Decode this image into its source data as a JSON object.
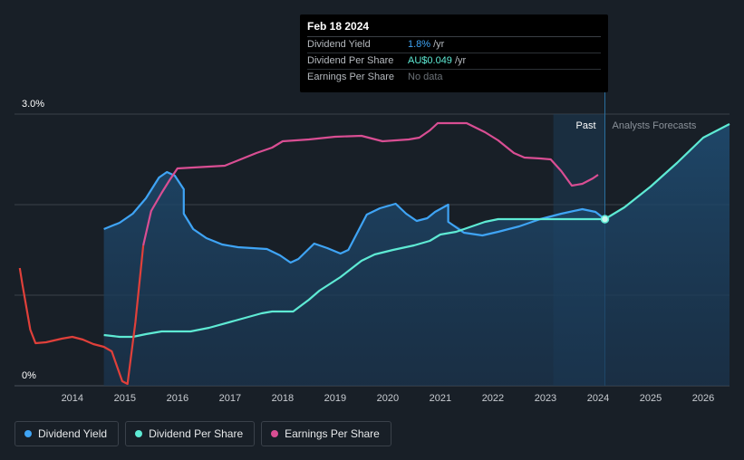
{
  "tooltip": {
    "date": "Feb 18 2024",
    "rows": [
      {
        "label": "Dividend Yield",
        "value": "1.8%",
        "unit": "/yr",
        "color": "#3fa4f5"
      },
      {
        "label": "Dividend Per Share",
        "value": "AU$0.049",
        "unit": "/yr",
        "color": "#5eead4"
      },
      {
        "label": "Earnings Per Share",
        "value": "No data",
        "unit": "",
        "color": "#6b7177"
      }
    ]
  },
  "legend": [
    {
      "label": "Dividend Yield",
      "color": "#3fa4f5"
    },
    {
      "label": "Dividend Per Share",
      "color": "#5eead4"
    },
    {
      "label": "Earnings Per Share",
      "color": "#d94e93"
    }
  ],
  "chart_data": {
    "type": "line",
    "title": "",
    "xlabel": "",
    "ylabel": "",
    "xlim": [
      2012.9,
      2026.5
    ],
    "ylim": [
      0,
      3.0
    ],
    "y_tick_labels": [
      {
        "value": 3.0,
        "label": "3.0%"
      },
      {
        "value": 0,
        "label": "0%"
      }
    ],
    "x_ticks": [
      2014,
      2015,
      2016,
      2017,
      2018,
      2019,
      2020,
      2021,
      2022,
      2023,
      2024,
      2025,
      2026
    ],
    "today": 2024.13,
    "past_shade_start": 2023.15,
    "region_labels": {
      "past": "Past",
      "forecast": "Analysts Forecasts"
    },
    "colors": {
      "yield": "#3fa4f5",
      "dps": "#5eead4",
      "eps": "#d94e93",
      "eps_low": "#e0403a"
    },
    "series": [
      {
        "name": "Dividend Yield",
        "key": "yield",
        "points": [
          [
            2014.6,
            1.73
          ],
          [
            2014.9,
            1.8
          ],
          [
            2015.15,
            1.9
          ],
          [
            2015.4,
            2.07
          ],
          [
            2015.65,
            2.3
          ],
          [
            2015.8,
            2.36
          ],
          [
            2015.95,
            2.32
          ],
          [
            2016.12,
            2.17
          ],
          [
            2016.12,
            1.9
          ],
          [
            2016.3,
            1.73
          ],
          [
            2016.55,
            1.63
          ],
          [
            2016.85,
            1.56
          ],
          [
            2017.15,
            1.53
          ],
          [
            2017.7,
            1.51
          ],
          [
            2017.95,
            1.44
          ],
          [
            2018.15,
            1.36
          ],
          [
            2018.3,
            1.4
          ],
          [
            2018.6,
            1.57
          ],
          [
            2018.85,
            1.52
          ],
          [
            2019.1,
            1.46
          ],
          [
            2019.25,
            1.5
          ],
          [
            2019.6,
            1.89
          ],
          [
            2019.85,
            1.96
          ],
          [
            2020.15,
            2.01
          ],
          [
            2020.35,
            1.9
          ],
          [
            2020.55,
            1.82
          ],
          [
            2020.75,
            1.85
          ],
          [
            2020.9,
            1.92
          ],
          [
            2021.15,
            2.0
          ],
          [
            2021.15,
            1.81
          ],
          [
            2021.45,
            1.69
          ],
          [
            2021.8,
            1.66
          ],
          [
            2022.1,
            1.7
          ],
          [
            2022.5,
            1.76
          ],
          [
            2022.9,
            1.84
          ],
          [
            2023.3,
            1.9
          ],
          [
            2023.7,
            1.95
          ],
          [
            2023.95,
            1.92
          ],
          [
            2024.13,
            1.84
          ]
        ]
      },
      {
        "name": "Dividend Per Share",
        "key": "dps",
        "points": [
          [
            2014.6,
            0.56
          ],
          [
            2014.9,
            0.54
          ],
          [
            2015.15,
            0.54
          ],
          [
            2015.4,
            0.57
          ],
          [
            2015.7,
            0.6
          ],
          [
            2016.25,
            0.6
          ],
          [
            2016.6,
            0.64
          ],
          [
            2017.1,
            0.72
          ],
          [
            2017.6,
            0.8
          ],
          [
            2017.8,
            0.82
          ],
          [
            2018.2,
            0.82
          ],
          [
            2018.5,
            0.95
          ],
          [
            2018.7,
            1.05
          ],
          [
            2019.1,
            1.2
          ],
          [
            2019.5,
            1.38
          ],
          [
            2019.75,
            1.45
          ],
          [
            2020.1,
            1.5
          ],
          [
            2020.5,
            1.55
          ],
          [
            2020.8,
            1.6
          ],
          [
            2021.0,
            1.67
          ],
          [
            2021.3,
            1.7
          ],
          [
            2021.6,
            1.76
          ],
          [
            2021.85,
            1.81
          ],
          [
            2022.1,
            1.84
          ],
          [
            2022.5,
            1.84
          ],
          [
            2023.0,
            1.84
          ],
          [
            2023.5,
            1.84
          ],
          [
            2024.13,
            1.84
          ],
          [
            2024.5,
            1.97
          ],
          [
            2025.0,
            2.2
          ],
          [
            2025.5,
            2.46
          ],
          [
            2026.0,
            2.74
          ],
          [
            2026.5,
            2.89
          ]
        ]
      },
      {
        "name": "Earnings Per Share",
        "key": "eps",
        "low_color_below_x": 2015.4,
        "points": [
          [
            2013.0,
            1.3
          ],
          [
            2013.05,
            1.12
          ],
          [
            2013.2,
            0.62
          ],
          [
            2013.3,
            0.47
          ],
          [
            2013.5,
            0.48
          ],
          [
            2013.8,
            0.52
          ],
          [
            2014.0,
            0.54
          ],
          [
            2014.2,
            0.51
          ],
          [
            2014.4,
            0.46
          ],
          [
            2014.6,
            0.43
          ],
          [
            2014.75,
            0.38
          ],
          [
            2014.95,
            0.05
          ],
          [
            2015.05,
            0.02
          ],
          [
            2015.2,
            0.7
          ],
          [
            2015.35,
            1.55
          ],
          [
            2015.5,
            1.93
          ],
          [
            2015.7,
            2.13
          ],
          [
            2015.85,
            2.27
          ],
          [
            2016.0,
            2.4
          ],
          [
            2016.3,
            2.41
          ],
          [
            2016.6,
            2.42
          ],
          [
            2016.9,
            2.43
          ],
          [
            2017.2,
            2.5
          ],
          [
            2017.5,
            2.57
          ],
          [
            2017.8,
            2.63
          ],
          [
            2018.0,
            2.7
          ],
          [
            2018.5,
            2.72
          ],
          [
            2019.0,
            2.75
          ],
          [
            2019.5,
            2.76
          ],
          [
            2019.9,
            2.7
          ],
          [
            2020.4,
            2.72
          ],
          [
            2020.6,
            2.74
          ],
          [
            2020.8,
            2.82
          ],
          [
            2020.95,
            2.9
          ],
          [
            2021.5,
            2.9
          ],
          [
            2021.85,
            2.8
          ],
          [
            2022.1,
            2.71
          ],
          [
            2022.4,
            2.57
          ],
          [
            2022.6,
            2.52
          ],
          [
            2022.9,
            2.51
          ],
          [
            2023.1,
            2.5
          ],
          [
            2023.3,
            2.37
          ],
          [
            2023.5,
            2.21
          ],
          [
            2023.7,
            2.23
          ],
          [
            2023.9,
            2.29
          ],
          [
            2024.0,
            2.33
          ]
        ]
      }
    ]
  }
}
